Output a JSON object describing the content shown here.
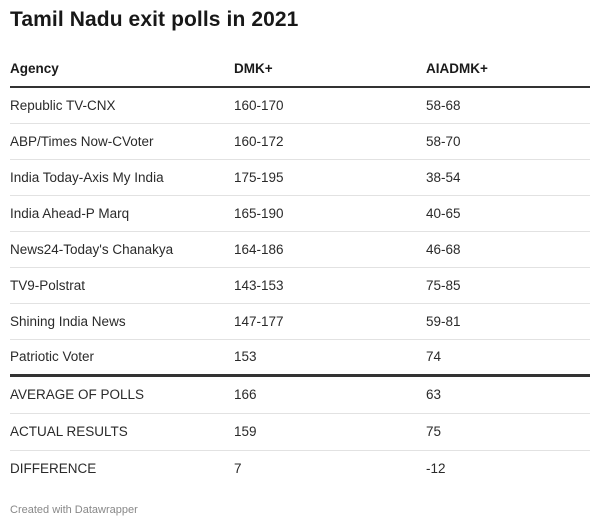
{
  "chart_data": {
    "type": "table",
    "title": "Tamil Nadu exit polls in 2021",
    "columns": [
      "Agency",
      "DMK+",
      "AIADMK+"
    ],
    "rows": [
      {
        "agency": "Republic TV-CNX",
        "dmk": "160-170",
        "aiadmk": "58-68"
      },
      {
        "agency": "ABP/Times Now-CVoter",
        "dmk": "160-172",
        "aiadmk": "58-70"
      },
      {
        "agency": "India Today-Axis My India",
        "dmk": "175-195",
        "aiadmk": "38-54"
      },
      {
        "agency": "India Ahead-P Marq",
        "dmk": "165-190",
        "aiadmk": "40-65"
      },
      {
        "agency": "News24-Today's Chanakya",
        "dmk": "164-186",
        "aiadmk": "46-68"
      },
      {
        "agency": "TV9-Polstrat",
        "dmk": "143-153",
        "aiadmk": "75-85"
      },
      {
        "agency": "Shining India News",
        "dmk": "147-177",
        "aiadmk": "59-81"
      },
      {
        "agency": "Patriotic Voter",
        "dmk": "153",
        "aiadmk": "74"
      }
    ],
    "summary": [
      {
        "agency": "AVERAGE OF POLLS",
        "dmk": "166",
        "aiadmk": "63"
      },
      {
        "agency": "ACTUAL RESULTS",
        "dmk": "159",
        "aiadmk": "75"
      },
      {
        "agency": "DIFFERENCE",
        "dmk": "7",
        "aiadmk": "-12"
      }
    ]
  },
  "footer": "Created with Datawrapper"
}
